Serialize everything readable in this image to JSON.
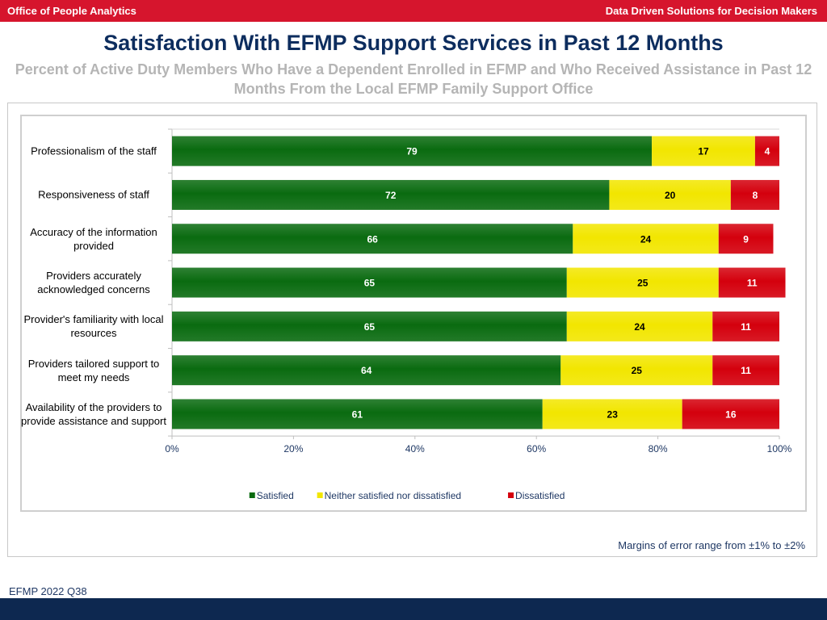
{
  "header": {
    "left_text": "Office of People Analytics",
    "right_text": "Data Driven Solutions for Decision Makers"
  },
  "title": "Satisfaction With EFMP Support Services in Past 12 Months",
  "subtitle": "Percent of Active Duty Members Who Have a Dependent Enrolled in EFMP and Who Received Assistance in Past 12 Months From the Local EFMP Family Support Office",
  "chart_data": {
    "type": "bar",
    "orientation": "horizontal",
    "stacked": true,
    "categories": [
      "Professionalism of the staff",
      "Responsiveness of staff",
      "Accuracy of the information provided",
      "Providers accurately acknowledged concerns",
      "Provider's familiarity with local resources",
      "Providers tailored support to meet my needs",
      "Availability of the providers to provide assistance and support"
    ],
    "series": [
      {
        "name": "Satisfied",
        "color": "#0a6b10",
        "label_color": "#ffffff",
        "values": [
          79,
          72,
          66,
          65,
          65,
          64,
          61
        ]
      },
      {
        "name": "Neither satisfied nor dissatisfied",
        "color": "#f2e600",
        "label_color": "#000000",
        "values": [
          17,
          20,
          24,
          25,
          24,
          25,
          23
        ]
      },
      {
        "name": "Dissatisfied",
        "color": "#d4000d",
        "label_color": "#ffffff",
        "values": [
          4,
          8,
          9,
          11,
          11,
          11,
          16
        ]
      }
    ],
    "xlim": [
      0,
      100
    ],
    "xticks": [
      "0%",
      "20%",
      "40%",
      "60%",
      "80%",
      "100%"
    ],
    "legend_position": "bottom"
  },
  "footer": {
    "margin_note": "Margins of error range from ±1% to ±2%",
    "source_code": "EFMP 2022 Q38"
  }
}
